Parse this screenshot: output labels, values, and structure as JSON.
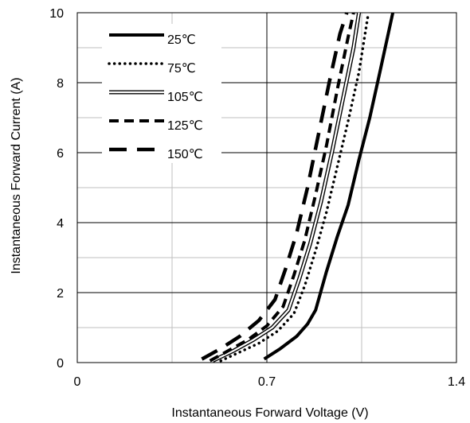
{
  "chart_data": {
    "type": "line",
    "xlabel": "Instantaneous Forward Voltage (V)",
    "ylabel": "Instantaneous Forward Current (A)",
    "xlim": [
      0,
      1.4
    ],
    "ylim": [
      0,
      10
    ],
    "x_ticks": [
      0,
      0.7,
      1.4
    ],
    "x_tick_labels": [
      "0",
      "0.7",
      "1.4"
    ],
    "x_minor_gridlines": [
      0.35,
      1.05
    ],
    "y_ticks": [
      0,
      2,
      4,
      6,
      8,
      10
    ],
    "y_tick_labels": [
      "0",
      "2",
      "4",
      "6",
      "8",
      "10"
    ],
    "y_minor_gridlines": [
      1,
      3,
      5,
      7,
      9
    ],
    "grid": true,
    "legend_position": "top-left",
    "series": [
      {
        "name": "25℃",
        "style": "solid-thick",
        "points": [
          [
            0.69,
            0.1
          ],
          [
            0.75,
            0.4
          ],
          [
            0.81,
            0.75
          ],
          [
            0.85,
            1.1
          ],
          [
            0.88,
            1.5
          ],
          [
            0.92,
            2.6
          ],
          [
            0.96,
            3.6
          ],
          [
            1.0,
            4.5
          ],
          [
            1.04,
            5.8
          ],
          [
            1.08,
            7.0
          ],
          [
            1.12,
            8.4
          ],
          [
            1.165,
            10.0
          ]
        ]
      },
      {
        "name": "75℃",
        "style": "dotted",
        "points": [
          [
            0.53,
            0.05
          ],
          [
            0.6,
            0.3
          ],
          [
            0.67,
            0.55
          ],
          [
            0.74,
            0.9
          ],
          [
            0.8,
            1.4
          ],
          [
            0.84,
            2.2
          ],
          [
            0.88,
            3.2
          ],
          [
            0.92,
            4.3
          ],
          [
            0.96,
            5.6
          ],
          [
            1.0,
            6.9
          ],
          [
            1.04,
            8.3
          ],
          [
            1.075,
            10.0
          ]
        ]
      },
      {
        "name": "105℃",
        "style": "double",
        "points": [
          [
            0.5,
            0.05
          ],
          [
            0.58,
            0.35
          ],
          [
            0.65,
            0.65
          ],
          [
            0.72,
            1.0
          ],
          [
            0.78,
            1.5
          ],
          [
            0.82,
            2.4
          ],
          [
            0.86,
            3.4
          ],
          [
            0.9,
            4.6
          ],
          [
            0.94,
            6.0
          ],
          [
            0.98,
            7.5
          ],
          [
            1.02,
            9.0
          ],
          [
            1.04,
            10.0
          ]
        ]
      },
      {
        "name": "125℃",
        "style": "dashed",
        "points": [
          [
            0.49,
            0.05
          ],
          [
            0.56,
            0.35
          ],
          [
            0.63,
            0.65
          ],
          [
            0.7,
            1.05
          ],
          [
            0.76,
            1.6
          ],
          [
            0.8,
            2.5
          ],
          [
            0.84,
            3.5
          ],
          [
            0.88,
            4.8
          ],
          [
            0.92,
            6.2
          ],
          [
            0.96,
            7.8
          ],
          [
            1.0,
            9.3
          ],
          [
            1.02,
            10.0
          ]
        ]
      },
      {
        "name": "150℃",
        "style": "long-dashed",
        "points": [
          [
            0.46,
            0.1
          ],
          [
            0.53,
            0.4
          ],
          [
            0.6,
            0.75
          ],
          [
            0.67,
            1.2
          ],
          [
            0.73,
            1.8
          ],
          [
            0.77,
            2.7
          ],
          [
            0.81,
            3.7
          ],
          [
            0.85,
            5.0
          ],
          [
            0.89,
            6.5
          ],
          [
            0.93,
            8.0
          ],
          [
            0.97,
            9.4
          ],
          [
            0.995,
            10.0
          ]
        ]
      }
    ]
  }
}
